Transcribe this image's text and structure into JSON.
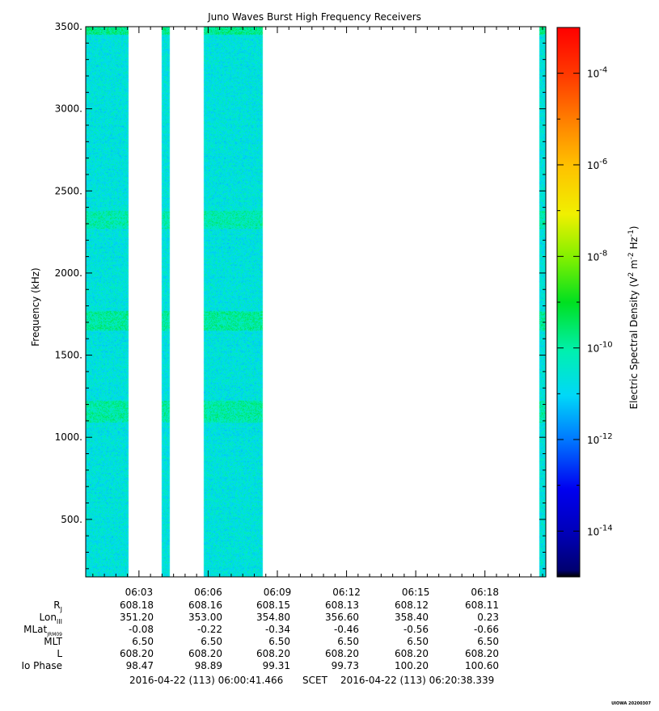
{
  "chart_data": {
    "type": "heatmap",
    "title": "Juno Waves Burst High Frequency Receivers",
    "ylabel": "Frequency (kHz)",
    "ylim": [
      150,
      3500
    ],
    "y_ticks": [
      500,
      1000,
      1500,
      2000,
      2500,
      3000,
      3500
    ],
    "y_tick_labels": [
      "500.",
      "1000.",
      "1500.",
      "2000.",
      "2500.",
      "3000.",
      "3500."
    ],
    "x_range_minutes": [
      0.691,
      20.639
    ],
    "x_ticks_minutes": [
      3,
      6,
      9,
      12,
      15,
      18
    ],
    "x_tick_labels": [
      "06:03",
      "06:06",
      "06:09",
      "06:12",
      "06:15",
      "06:18"
    ],
    "colorbar": {
      "label": "Electric Spectral Density (V² m⁻² Hz⁻¹)",
      "log_range": [
        -15,
        -3
      ],
      "tick_exponents": [
        -14,
        -12,
        -10,
        -8,
        -6,
        -4
      ],
      "tick_labels": [
        "10-14",
        "10-12",
        "10-10",
        "10-8",
        "10-6",
        "10-4"
      ]
    },
    "data_segments_minutes": [
      [
        0.691,
        2.55
      ],
      [
        3.99,
        4.35
      ],
      [
        5.82,
        8.38
      ],
      [
        20.37,
        20.639
      ]
    ],
    "background_log_density": -11.6,
    "enhanced_bands": [
      {
        "freq_range_khz": [
          1650,
          1770
        ],
        "log_density": -10.9
      },
      {
        "freq_range_khz": [
          1090,
          1220
        ],
        "log_density": -11.0
      },
      {
        "freq_range_khz": [
          2270,
          2380
        ],
        "log_density": -11.1
      },
      {
        "freq_range_khz": [
          3450,
          3500
        ],
        "log_density": -10.8
      }
    ]
  },
  "ephemeris": {
    "labels": [
      "R",
      "Lon",
      "MLat",
      "MLT",
      "L",
      "Io Phase"
    ],
    "subscripts": [
      "J",
      "III",
      "JRM09",
      "",
      "",
      ""
    ],
    "columns": [
      [
        "608.18",
        "351.20",
        "-0.08",
        "6.50",
        "608.20",
        "98.47"
      ],
      [
        "608.16",
        "353.00",
        "-0.22",
        "6.50",
        "608.20",
        "98.89"
      ],
      [
        "608.15",
        "354.80",
        "-0.34",
        "6.50",
        "608.20",
        "99.31"
      ],
      [
        "608.13",
        "356.60",
        "-0.46",
        "6.50",
        "608.20",
        "99.73"
      ],
      [
        "608.12",
        "358.40",
        "-0.56",
        "6.50",
        "608.20",
        "100.20"
      ],
      [
        "608.11",
        "0.23",
        "-0.66",
        "6.50",
        "608.20",
        "100.60"
      ]
    ]
  },
  "footer": {
    "start": "2016-04-22 (113) 06:00:41.466",
    "mid": "SCET",
    "end": "2016-04-22 (113) 06:20:38.339",
    "stamp": "UIOWA 20200307"
  }
}
